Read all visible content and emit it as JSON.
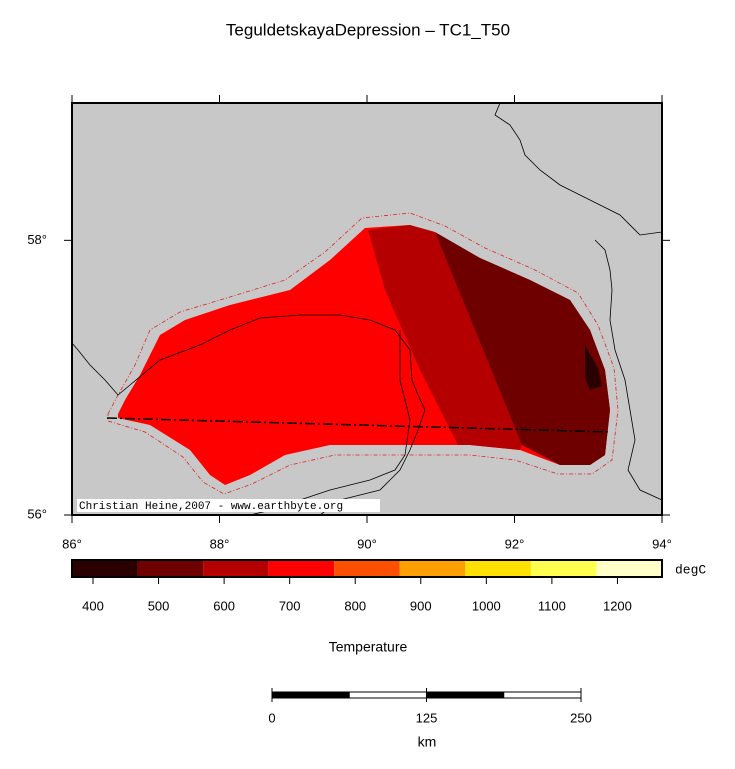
{
  "title": "TeguldetskayaDepression – TC1_T50",
  "map": {
    "lonlim": [
      86,
      94
    ],
    "latlim": [
      56,
      59
    ],
    "lon_ticks": [
      {
        "value": 86,
        "label": "86°"
      },
      {
        "value": 88,
        "label": "88°"
      },
      {
        "value": 90,
        "label": "90°"
      },
      {
        "value": 92,
        "label": "92°"
      },
      {
        "value": 94,
        "label": "94°"
      }
    ],
    "lat_ticks": [
      {
        "value": 56,
        "label": "56°"
      },
      {
        "value": 58,
        "label": "58°"
      }
    ],
    "credit": "Christian Heine,2007 - www.earthbyte.org",
    "background": "#c8c8c8"
  },
  "colorbar": {
    "colors": [
      "#2a0000",
      "#6e0000",
      "#b40000",
      "#ff0000",
      "#ff5000",
      "#ffa000",
      "#ffe000",
      "#ffff50",
      "#ffffc8"
    ],
    "labels": [
      400,
      500,
      600,
      700,
      800,
      900,
      1000,
      1100,
      1200
    ],
    "unit": "degC",
    "title": "Temperature"
  },
  "scale_bar": {
    "ticks": [
      0,
      125,
      250
    ],
    "unit": "km"
  }
}
